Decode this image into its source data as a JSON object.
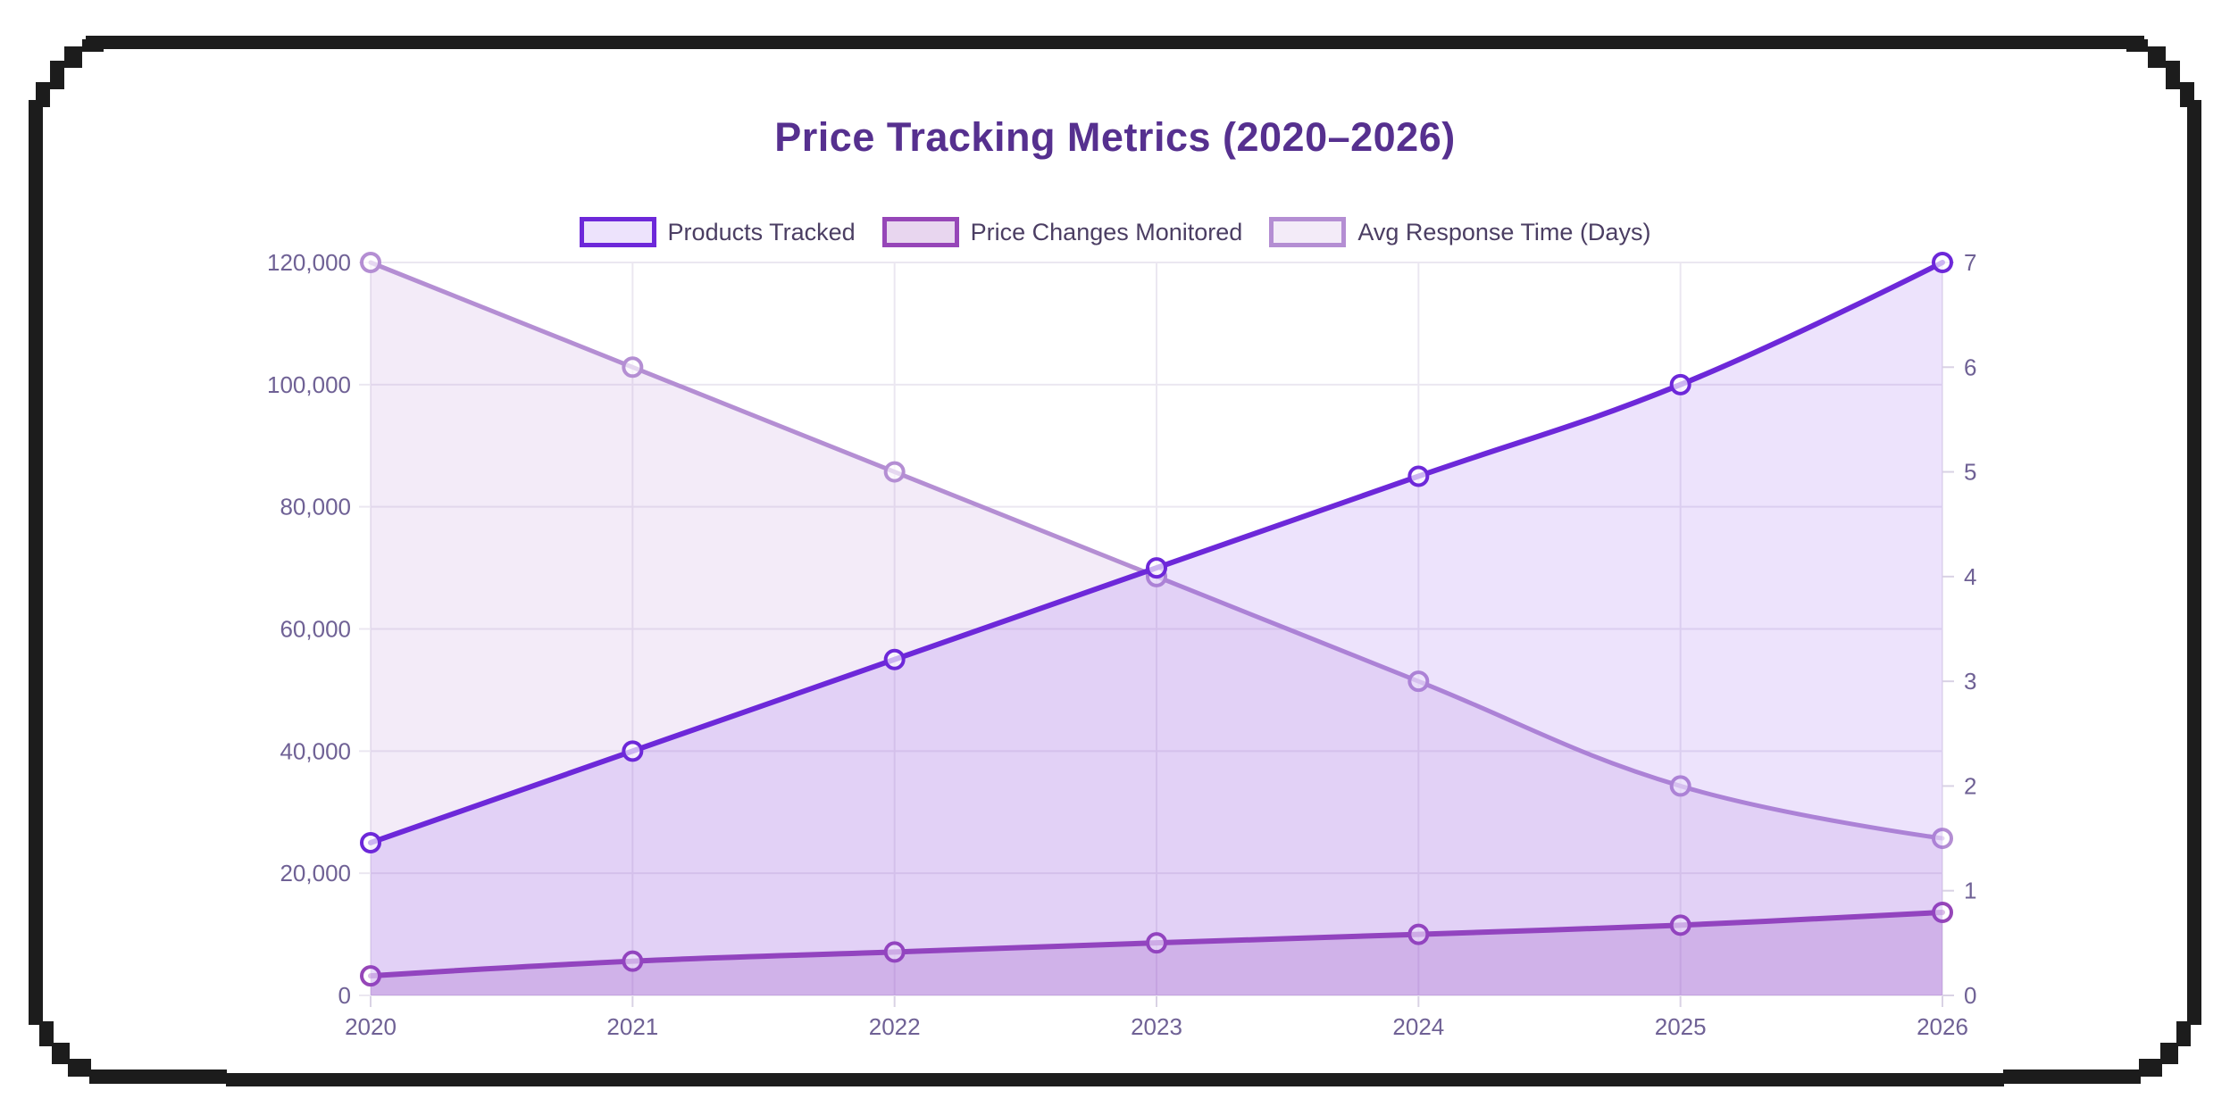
{
  "title": {
    "text": "Price Tracking Metrics (2020–2026)",
    "color": "#56308f"
  },
  "legend": {
    "position": "top",
    "text_color": "#4b3e63"
  },
  "axes": {
    "tick_label_color": "#6f6195",
    "grid_color": "#ebe7f1",
    "tick_mark_color": "#d9d2e4"
  },
  "frame_color": "#1c1c1c",
  "chart_data": {
    "type": "line",
    "title": "Price Tracking Metrics (2020–2026)",
    "x": [
      "2020",
      "2021",
      "2022",
      "2023",
      "2024",
      "2025",
      "2026"
    ],
    "series": [
      {
        "name": "Products Tracked",
        "axis": "left",
        "values": [
          25000,
          40000,
          55000,
          70000,
          85000,
          100000,
          120000
        ],
        "color": "#6d28d9",
        "fill": "rgba(124,58,237,0.14)",
        "line_width": 6
      },
      {
        "name": "Price Changes Monitored",
        "axis": "left",
        "values": [
          3200,
          5600,
          7100,
          8600,
          10000,
          11500,
          13600
        ],
        "color": "#9646b8",
        "fill": "rgba(150,70,184,0.22)",
        "line_width": 6
      },
      {
        "name": "Avg Response Time (Days)",
        "axis": "right",
        "values": [
          7,
          6,
          5,
          4,
          3,
          2,
          1.5
        ],
        "color": "#b48ed3",
        "fill": "rgba(186,143,214,0.18)",
        "line_width": 5
      }
    ],
    "left_axis": {
      "min": 0,
      "max": 120000,
      "step": 20000,
      "labels": [
        "0",
        "20,000",
        "40,000",
        "60,000",
        "80,000",
        "100,000",
        "120,000"
      ]
    },
    "right_axis": {
      "min": 0,
      "max": 7,
      "step": 1,
      "labels": [
        "0",
        "1",
        "2",
        "3",
        "4",
        "5",
        "6",
        "7"
      ]
    },
    "grid": true,
    "legend_position": "top",
    "smoothing": 0.4,
    "marker": {
      "radius": 10,
      "stroke_width": 4,
      "fill": "rgba(255,255,255,0.65)"
    }
  }
}
